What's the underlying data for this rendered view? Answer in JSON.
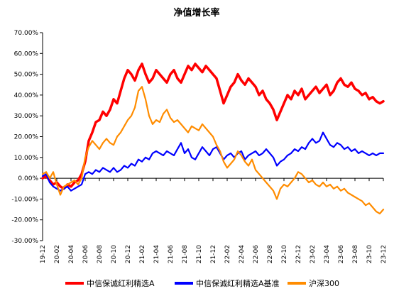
{
  "chart_data": {
    "type": "line",
    "title": "净值增长率",
    "xlabel": "",
    "ylabel": "",
    "ylim": [
      -30,
      70
    ],
    "y_ticks": [
      -30,
      -20,
      -10,
      0,
      10,
      20,
      30,
      40,
      50,
      60,
      70
    ],
    "y_tick_labels": [
      "-30.00%",
      "-20.00%",
      "-10.00%",
      "0.00%",
      "10.00%",
      "20.00%",
      "30.00%",
      "40.00%",
      "50.00%",
      "60.00%",
      "70.00%"
    ],
    "x_ticks": [
      0,
      2,
      4,
      6,
      8,
      10,
      12,
      14,
      16,
      18,
      20,
      22,
      24,
      26,
      28,
      30,
      32,
      34,
      36,
      38,
      40,
      42,
      44,
      46,
      48
    ],
    "x_tick_labels": [
      "19-12",
      "20-02",
      "20-04",
      "20-06",
      "20-08",
      "20-10",
      "20-12",
      "21-02",
      "21-04",
      "21-06",
      "21-08",
      "21-10",
      "21-12",
      "22-02",
      "22-04",
      "22-06",
      "22-08",
      "22-10",
      "22-12",
      "23-02",
      "23-04",
      "23-06",
      "23-08",
      "23-10",
      "23-12"
    ],
    "xlim": [
      0,
      48
    ],
    "grid": false,
    "legend_position": "bottom",
    "x_axis_note": "x values are months elapsed since 2019-12",
    "series": [
      {
        "name": "中信保诚红利精选A",
        "color": "#ff0000",
        "line_width": 3.5,
        "points": [
          [
            0,
            0
          ],
          [
            0.5,
            1
          ],
          [
            1,
            -1
          ],
          [
            1.5,
            -3
          ],
          [
            2,
            -2
          ],
          [
            2.5,
            -4
          ],
          [
            3,
            -5
          ],
          [
            3.5,
            -3
          ],
          [
            4,
            -4
          ],
          [
            4.5,
            -2
          ],
          [
            5,
            -1
          ],
          [
            5.5,
            2
          ],
          [
            6,
            8
          ],
          [
            6.5,
            18
          ],
          [
            7,
            22
          ],
          [
            7.5,
            27
          ],
          [
            8,
            28
          ],
          [
            8.5,
            32
          ],
          [
            9,
            30
          ],
          [
            9.5,
            33
          ],
          [
            10,
            38
          ],
          [
            10.5,
            36
          ],
          [
            11,
            42
          ],
          [
            11.5,
            48
          ],
          [
            12,
            52
          ],
          [
            12.5,
            50
          ],
          [
            13,
            47
          ],
          [
            13.5,
            52
          ],
          [
            14,
            55
          ],
          [
            14.5,
            50
          ],
          [
            15,
            46
          ],
          [
            15.5,
            48
          ],
          [
            16,
            52
          ],
          [
            16.5,
            50
          ],
          [
            17,
            48
          ],
          [
            17.5,
            46
          ],
          [
            18,
            50
          ],
          [
            18.5,
            52
          ],
          [
            19,
            48
          ],
          [
            19.5,
            46
          ],
          [
            20,
            50
          ],
          [
            20.5,
            54
          ],
          [
            21,
            52
          ],
          [
            21.5,
            55
          ],
          [
            22,
            53
          ],
          [
            22.5,
            51
          ],
          [
            23,
            54
          ],
          [
            23.5,
            52
          ],
          [
            24,
            50
          ],
          [
            24.5,
            48
          ],
          [
            25,
            42
          ],
          [
            25.5,
            36
          ],
          [
            26,
            40
          ],
          [
            26.5,
            44
          ],
          [
            27,
            46
          ],
          [
            27.5,
            50
          ],
          [
            28,
            47
          ],
          [
            28.5,
            45
          ],
          [
            29,
            48
          ],
          [
            29.5,
            46
          ],
          [
            30,
            44
          ],
          [
            30.5,
            40
          ],
          [
            31,
            42
          ],
          [
            31.5,
            38
          ],
          [
            32,
            36
          ],
          [
            32.5,
            33
          ],
          [
            33,
            28
          ],
          [
            33.5,
            32
          ],
          [
            34,
            36
          ],
          [
            34.5,
            40
          ],
          [
            35,
            38
          ],
          [
            35.5,
            42
          ],
          [
            36,
            40
          ],
          [
            36.5,
            43
          ],
          [
            37,
            38
          ],
          [
            37.5,
            40
          ],
          [
            38,
            42
          ],
          [
            38.5,
            44
          ],
          [
            39,
            41
          ],
          [
            39.5,
            43
          ],
          [
            40,
            45
          ],
          [
            40.5,
            40
          ],
          [
            41,
            42
          ],
          [
            41.5,
            46
          ],
          [
            42,
            48
          ],
          [
            42.5,
            45
          ],
          [
            43,
            44
          ],
          [
            43.5,
            46
          ],
          [
            44,
            43
          ],
          [
            44.5,
            42
          ],
          [
            45,
            40
          ],
          [
            45.5,
            41
          ],
          [
            46,
            38
          ],
          [
            46.5,
            39
          ],
          [
            47,
            37
          ],
          [
            47.5,
            36
          ],
          [
            48,
            37
          ]
        ]
      },
      {
        "name": "中信保诚红利精选A基准",
        "color": "#0000ff",
        "line_width": 2.2,
        "points": [
          [
            0,
            1
          ],
          [
            0.5,
            2
          ],
          [
            1,
            -2
          ],
          [
            1.5,
            -4
          ],
          [
            2,
            -5
          ],
          [
            2.5,
            -6
          ],
          [
            3,
            -5
          ],
          [
            3.5,
            -4
          ],
          [
            4,
            -6
          ],
          [
            4.5,
            -5
          ],
          [
            5,
            -4
          ],
          [
            5.5,
            -3
          ],
          [
            6,
            2
          ],
          [
            6.5,
            3
          ],
          [
            7,
            2
          ],
          [
            7.5,
            4
          ],
          [
            8,
            3
          ],
          [
            8.5,
            5
          ],
          [
            9,
            4
          ],
          [
            9.5,
            3
          ],
          [
            10,
            5
          ],
          [
            10.5,
            3
          ],
          [
            11,
            4
          ],
          [
            11.5,
            6
          ],
          [
            12,
            5
          ],
          [
            12.5,
            7
          ],
          [
            13,
            6
          ],
          [
            13.5,
            9
          ],
          [
            14,
            8
          ],
          [
            14.5,
            10
          ],
          [
            15,
            9
          ],
          [
            15.5,
            12
          ],
          [
            16,
            13
          ],
          [
            16.5,
            12
          ],
          [
            17,
            11
          ],
          [
            17.5,
            13
          ],
          [
            18,
            12
          ],
          [
            18.5,
            11
          ],
          [
            19,
            14
          ],
          [
            19.5,
            17
          ],
          [
            20,
            12
          ],
          [
            20.5,
            14
          ],
          [
            21,
            10
          ],
          [
            21.5,
            9
          ],
          [
            22,
            12
          ],
          [
            22.5,
            15
          ],
          [
            23,
            13
          ],
          [
            23.5,
            11
          ],
          [
            24,
            14
          ],
          [
            24.5,
            15
          ],
          [
            25,
            12
          ],
          [
            25.5,
            9
          ],
          [
            26,
            11
          ],
          [
            26.5,
            12
          ],
          [
            27,
            10
          ],
          [
            27.5,
            12
          ],
          [
            28,
            13
          ],
          [
            28.5,
            9
          ],
          [
            29,
            11
          ],
          [
            29.5,
            12
          ],
          [
            30,
            13
          ],
          [
            30.5,
            11
          ],
          [
            31,
            12
          ],
          [
            31.5,
            14
          ],
          [
            32,
            12
          ],
          [
            32.5,
            10
          ],
          [
            33,
            6
          ],
          [
            33.5,
            8
          ],
          [
            34,
            9
          ],
          [
            34.5,
            11
          ],
          [
            35,
            12
          ],
          [
            35.5,
            14
          ],
          [
            36,
            13
          ],
          [
            36.5,
            15
          ],
          [
            37,
            14
          ],
          [
            37.5,
            17
          ],
          [
            38,
            19
          ],
          [
            38.5,
            17
          ],
          [
            39,
            18
          ],
          [
            39.5,
            22
          ],
          [
            40,
            19
          ],
          [
            40.5,
            16
          ],
          [
            41,
            15
          ],
          [
            41.5,
            17
          ],
          [
            42,
            16
          ],
          [
            42.5,
            14
          ],
          [
            43,
            15
          ],
          [
            43.5,
            13
          ],
          [
            44,
            14
          ],
          [
            44.5,
            12
          ],
          [
            45,
            13
          ],
          [
            45.5,
            12
          ],
          [
            46,
            11
          ],
          [
            46.5,
            12
          ],
          [
            47,
            11
          ],
          [
            47.5,
            12
          ],
          [
            48,
            12
          ]
        ]
      },
      {
        "name": "沪深300",
        "color": "#ff8c00",
        "line_width": 2.2,
        "points": [
          [
            0,
            2
          ],
          [
            0.5,
            3
          ],
          [
            1,
            0
          ],
          [
            1.5,
            3
          ],
          [
            2,
            -3
          ],
          [
            2.5,
            -8
          ],
          [
            3,
            -4
          ],
          [
            3.5,
            -3
          ],
          [
            4,
            -2
          ],
          [
            4.5,
            -1
          ],
          [
            5,
            -3
          ],
          [
            5.5,
            0
          ],
          [
            6,
            10
          ],
          [
            6.5,
            15
          ],
          [
            7,
            18
          ],
          [
            7.5,
            16
          ],
          [
            8,
            14
          ],
          [
            8.5,
            17
          ],
          [
            9,
            19
          ],
          [
            9.5,
            17
          ],
          [
            10,
            16
          ],
          [
            10.5,
            20
          ],
          [
            11,
            22
          ],
          [
            11.5,
            25
          ],
          [
            12,
            28
          ],
          [
            12.5,
            30
          ],
          [
            13,
            34
          ],
          [
            13.5,
            42
          ],
          [
            14,
            44
          ],
          [
            14.5,
            38
          ],
          [
            15,
            30
          ],
          [
            15.5,
            26
          ],
          [
            16,
            28
          ],
          [
            16.5,
            27
          ],
          [
            17,
            31
          ],
          [
            17.5,
            33
          ],
          [
            18,
            29
          ],
          [
            18.5,
            27
          ],
          [
            19,
            28
          ],
          [
            19.5,
            26
          ],
          [
            20,
            24
          ],
          [
            20.5,
            22
          ],
          [
            21,
            25
          ],
          [
            21.5,
            24
          ],
          [
            22,
            23
          ],
          [
            22.5,
            26
          ],
          [
            23,
            24
          ],
          [
            23.5,
            22
          ],
          [
            24,
            20
          ],
          [
            24.5,
            16
          ],
          [
            25,
            13
          ],
          [
            25.5,
            8
          ],
          [
            26,
            5
          ],
          [
            26.5,
            7
          ],
          [
            27,
            9
          ],
          [
            27.5,
            13
          ],
          [
            28,
            11
          ],
          [
            28.5,
            8
          ],
          [
            29,
            6
          ],
          [
            29.5,
            9
          ],
          [
            30,
            4
          ],
          [
            30.5,
            2
          ],
          [
            31,
            0
          ],
          [
            31.5,
            -2
          ],
          [
            32,
            -4
          ],
          [
            32.5,
            -6
          ],
          [
            33,
            -10
          ],
          [
            33.5,
            -5
          ],
          [
            34,
            -3
          ],
          [
            34.5,
            -4
          ],
          [
            35,
            -2
          ],
          [
            35.5,
            0
          ],
          [
            36,
            3
          ],
          [
            36.5,
            2
          ],
          [
            37,
            0
          ],
          [
            37.5,
            -2
          ],
          [
            38,
            -1
          ],
          [
            38.5,
            -3
          ],
          [
            39,
            -4
          ],
          [
            39.5,
            -2
          ],
          [
            40,
            -4
          ],
          [
            40.5,
            -3
          ],
          [
            41,
            -5
          ],
          [
            41.5,
            -4
          ],
          [
            42,
            -6
          ],
          [
            42.5,
            -5
          ],
          [
            43,
            -7
          ],
          [
            43.5,
            -8
          ],
          [
            44,
            -9
          ],
          [
            44.5,
            -10
          ],
          [
            45,
            -11
          ],
          [
            45.5,
            -13
          ],
          [
            46,
            -12
          ],
          [
            46.5,
            -14
          ],
          [
            47,
            -16
          ],
          [
            47.5,
            -17
          ],
          [
            48,
            -15
          ]
        ]
      }
    ]
  }
}
